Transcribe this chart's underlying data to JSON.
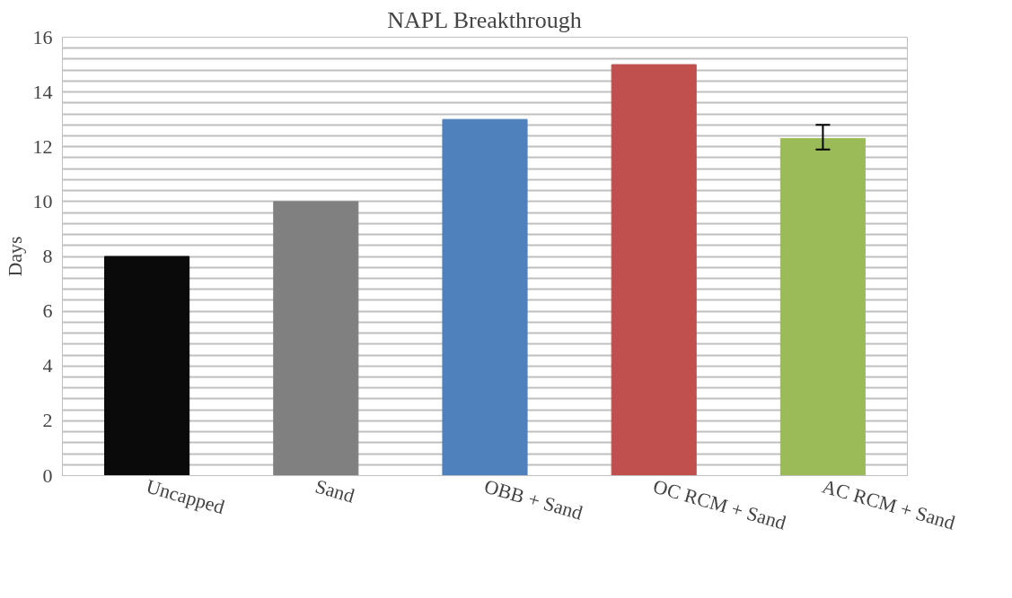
{
  "chart_data": {
    "type": "bar",
    "title": "NAPL Breakthrough",
    "ylabel": "Days",
    "categories": [
      "Uncapped",
      "Sand",
      "OBB + Sand",
      "OC RCM + Sand",
      "AC RCM + Sand"
    ],
    "values": [
      8,
      10,
      13,
      15,
      12.3
    ],
    "colors": [
      "#0a0a0a",
      "#808080",
      "#4f81bd",
      "#c0504d",
      "#9bbb59"
    ],
    "errors": [
      null,
      null,
      null,
      null,
      [
        11.9,
        12.8
      ]
    ],
    "ylim": [
      0,
      16
    ],
    "yticks": [
      0,
      {
        "value": 0.4,
        "label": null
      },
      {
        "value": 0.8,
        "label": null
      },
      {
        "value": 1.2,
        "label": null
      },
      {
        "value": 1.6,
        "label": null
      },
      2,
      {
        "value": 2.4,
        "label": null
      },
      {
        "value": 2.8,
        "label": null
      },
      {
        "value": 3.2,
        "label": null
      },
      {
        "value": 3.6,
        "label": null
      },
      4,
      {
        "value": 4.4,
        "label": null
      },
      {
        "value": 4.8,
        "label": null
      },
      {
        "value": 5.2,
        "label": null
      },
      {
        "value": 5.6,
        "label": null
      },
      6,
      {
        "value": 6.4,
        "label": null
      },
      {
        "value": 6.8,
        "label": null
      },
      {
        "value": 7.2,
        "label": null
      },
      {
        "value": 7.6,
        "label": null
      },
      8,
      {
        "value": 8.4,
        "label": null
      },
      {
        "value": 8.8,
        "label": null
      },
      {
        "value": 9.2,
        "label": null
      },
      {
        "value": 9.6,
        "label": null
      },
      10,
      {
        "value": 10.4,
        "label": null
      },
      {
        "value": 10.8,
        "label": null
      },
      {
        "value": 11.2,
        "label": null
      },
      {
        "value": 11.6,
        "label": null
      },
      12,
      {
        "value": 12.4,
        "label": null
      },
      {
        "value": 12.8,
        "label": null
      },
      {
        "value": 13.2,
        "label": null
      },
      {
        "value": 13.6,
        "label": null
      },
      14,
      {
        "value": 14.4,
        "label": null
      },
      {
        "value": 14.8,
        "label": null
      },
      {
        "value": 15.2,
        "label": null
      },
      {
        "value": 15.6,
        "label": null
      },
      16
    ],
    "grid": "y"
  }
}
